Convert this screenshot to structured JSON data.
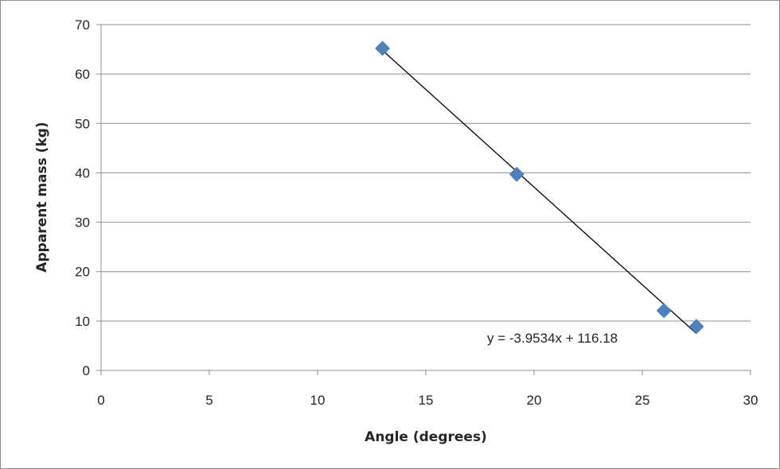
{
  "chart_data": {
    "type": "scatter",
    "title": "",
    "xlabel": "Angle (degrees)",
    "ylabel": "Apparent mass (kg)",
    "xlim": [
      0,
      30
    ],
    "ylim": [
      0,
      70
    ],
    "xticks": [
      "0",
      "5",
      "10",
      "15",
      "20",
      "25",
      "30"
    ],
    "yticks": [
      "0",
      "10",
      "20",
      "30",
      "40",
      "50",
      "60",
      "70"
    ],
    "grid": "horizontal",
    "legend": "none",
    "series": [
      {
        "marker": "diamond",
        "color": "#4f81bd",
        "points": [
          {
            "x": 13.0,
            "y": 65.2
          },
          {
            "x": 19.2,
            "y": 39.7
          },
          {
            "x": 26.0,
            "y": 12.1
          },
          {
            "x": 27.5,
            "y": 8.9
          }
        ]
      }
    ],
    "trendline": {
      "slope": -3.9534,
      "intercept": 116.18,
      "x_range": [
        13.0,
        27.5
      ],
      "color": "#000000",
      "label": "y = -3.9534x + 116.18"
    }
  }
}
